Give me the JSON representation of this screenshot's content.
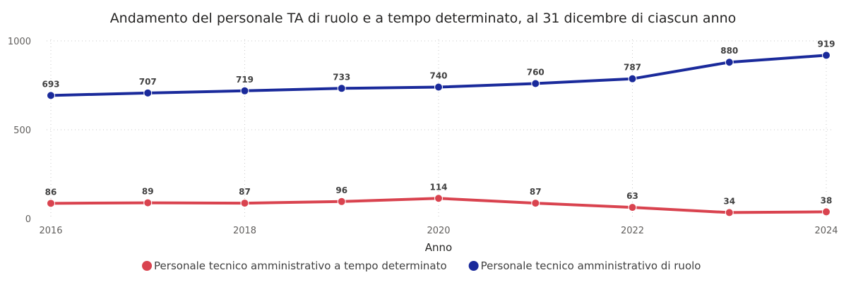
{
  "chart_data": {
    "type": "line",
    "title": "Andamento del personale TA di ruolo e a tempo determinato, al 31 dicembre di ciascun anno",
    "xlabel": "Anno",
    "ylabel": "",
    "x": [
      2016,
      2017,
      2018,
      2019,
      2020,
      2021,
      2022,
      2023,
      2024
    ],
    "x_ticks": [
      "2016",
      "2018",
      "2020",
      "2022",
      "2024"
    ],
    "y_ticks": [
      "0",
      "500",
      "1000"
    ],
    "ylim": [
      0,
      1000
    ],
    "xlim": [
      2016,
      2024
    ],
    "grid": true,
    "legend_position": "bottom",
    "series": [
      {
        "name": "Personale tecnico amministrativo a tempo determinato",
        "color": "#d9434f",
        "values": [
          86,
          89,
          87,
          96,
          114,
          87,
          63,
          34,
          38
        ]
      },
      {
        "name": "Personale tecnico amministrativo di ruolo",
        "color": "#1a2a9b",
        "values": [
          693,
          707,
          719,
          733,
          740,
          760,
          787,
          880,
          919
        ]
      }
    ]
  }
}
